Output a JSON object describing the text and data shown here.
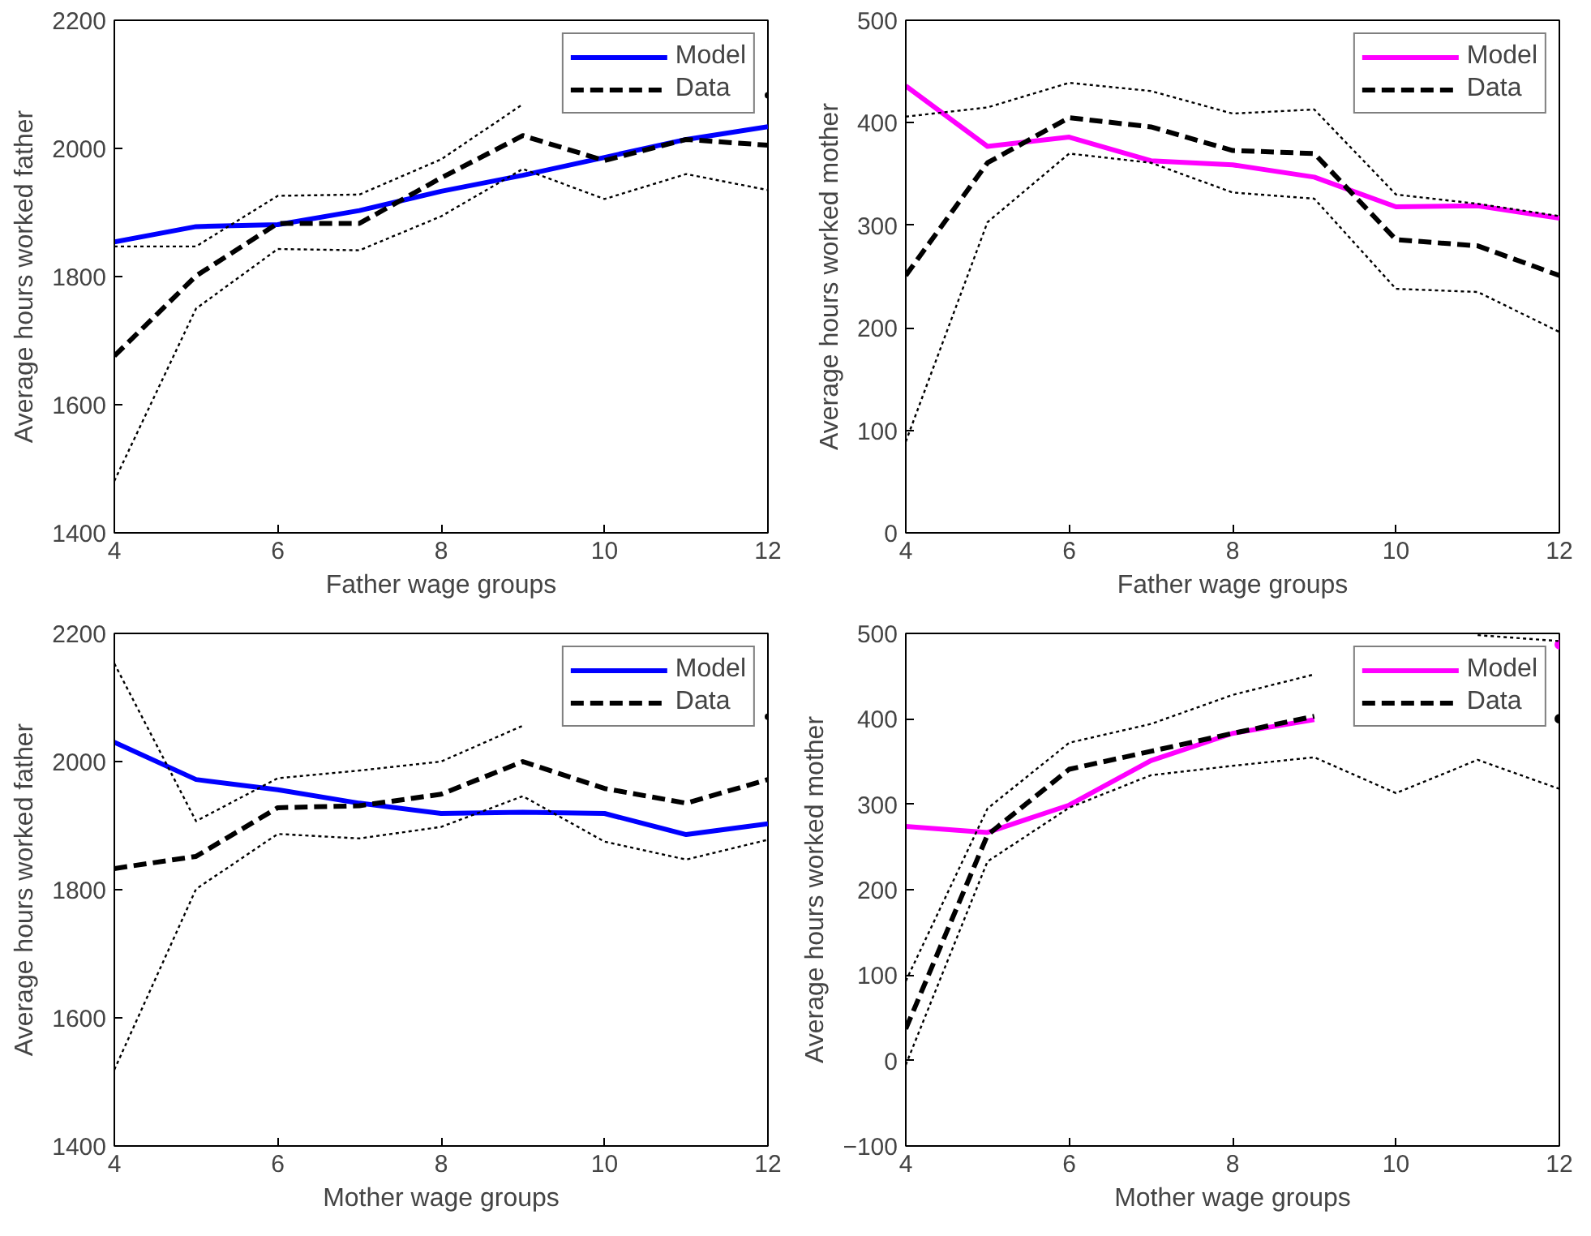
{
  "chart_data": [
    {
      "type": "line",
      "xlabel": "Father wage groups",
      "ylabel": "Average hours worked father",
      "x": [
        4,
        5,
        6,
        7,
        8,
        9,
        10,
        11,
        12
      ],
      "xlim": [
        4,
        12
      ],
      "xticks": [
        4,
        6,
        8,
        10,
        12
      ],
      "ylim": [
        1400,
        2200
      ],
      "yticks": [
        1400,
        1600,
        1800,
        2000,
        2200
      ],
      "grid": false,
      "legend": "top right",
      "series": [
        {
          "name": "Model",
          "color": "#0000ff",
          "line_style": "solid",
          "values": [
            1854,
            1878,
            1881,
            1903,
            1933,
            1958,
            1986,
            2014,
            2034
          ]
        },
        {
          "name": "Data",
          "color": "#000000",
          "line_style": "dashed",
          "values": [
            1676,
            1801,
            1883,
            1883,
            1954,
            2020,
            1981,
            2014,
            2005
          ]
        },
        {
          "color": "#000000",
          "line_style": "dotted",
          "values": [
            1481,
            1750,
            1843,
            1841,
            1894,
            1968,
            1921,
            1960,
            1935
          ]
        },
        {
          "color": "#000000",
          "line_style": "dotted",
          "values": [
            1847,
            1847,
            1926,
            1928,
            1983,
            2069,
            null,
            null,
            2083
          ]
        }
      ]
    },
    {
      "type": "line",
      "xlabel": "Father wage groups",
      "ylabel": "Average hours worked mother",
      "x": [
        4,
        5,
        6,
        7,
        8,
        9,
        10,
        11,
        12
      ],
      "xlim": [
        4,
        12
      ],
      "xticks": [
        4,
        6,
        8,
        10,
        12
      ],
      "ylim": [
        0,
        500
      ],
      "yticks": [
        0,
        100,
        200,
        300,
        400,
        500
      ],
      "grid": false,
      "legend": "top right",
      "series": [
        {
          "name": "Model",
          "color": "#ff00ff",
          "line_style": "solid",
          "values": [
            436,
            377,
            386,
            363,
            359,
            347,
            318,
            319,
            307
          ]
        },
        {
          "name": "Data",
          "color": "#000000",
          "line_style": "dashed",
          "values": [
            251,
            361,
            405,
            396,
            373,
            370,
            286,
            280,
            251
          ]
        },
        {
          "color": "#000000",
          "line_style": "dotted",
          "values": [
            89,
            303,
            370,
            361,
            332,
            326,
            238,
            235,
            196
          ]
        },
        {
          "color": "#000000",
          "line_style": "dotted",
          "values": [
            406,
            415,
            439,
            431,
            409,
            413,
            330,
            321,
            309
          ]
        }
      ]
    },
    {
      "type": "line",
      "xlabel": "Mother wage groups",
      "ylabel": "Average hours worked father",
      "x": [
        4,
        5,
        6,
        7,
        8,
        9,
        10,
        11,
        12
      ],
      "xlim": [
        4,
        12
      ],
      "xticks": [
        4,
        6,
        8,
        10,
        12
      ],
      "ylim": [
        1400,
        2200
      ],
      "yticks": [
        1400,
        1600,
        1800,
        2000,
        2200
      ],
      "grid": false,
      "legend": "top right",
      "series": [
        {
          "name": "Model",
          "color": "#0000ff",
          "line_style": "solid",
          "values": [
            2030,
            1972,
            1956,
            1935,
            1919,
            1921,
            1919,
            1886,
            1903
          ]
        },
        {
          "name": "Data",
          "color": "#000000",
          "line_style": "dashed",
          "values": [
            1833,
            1852,
            1928,
            1931,
            1949,
            2000,
            1958,
            1935,
            1972
          ]
        },
        {
          "color": "#000000",
          "line_style": "dotted",
          "values": [
            1519,
            1801,
            1887,
            1880,
            1898,
            1946,
            1875,
            1847,
            1878
          ]
        },
        {
          "color": "#000000",
          "line_style": "dotted",
          "values": [
            2153,
            1907,
            1974,
            1986,
            2000,
            2056,
            null,
            null,
            2070
          ]
        }
      ]
    },
    {
      "type": "line",
      "xlabel": "Mother wage groups",
      "ylabel": "Average hours worked mother",
      "x": [
        4,
        5,
        6,
        7,
        8,
        9,
        10,
        11,
        12
      ],
      "xlim": [
        4,
        12
      ],
      "xticks": [
        4,
        6,
        8,
        10,
        12
      ],
      "ylim": [
        -100,
        500
      ],
      "yticks": [
        -100,
        0,
        100,
        200,
        300,
        400,
        500
      ],
      "grid": false,
      "legend": "top right",
      "series": [
        {
          "name": "Model",
          "color": "#ff00ff",
          "line_style": "solid",
          "values": [
            274,
            267,
            299,
            351,
            383,
            399,
            null,
            null,
            487
          ]
        },
        {
          "name": "Data",
          "color": "#000000",
          "line_style": "dashed",
          "values": [
            37,
            264,
            341,
            362,
            383,
            403,
            null,
            null,
            400
          ]
        },
        {
          "color": "#000000",
          "line_style": "dotted",
          "values": [
            -5,
            233,
            296,
            334,
            345,
            355,
            313,
            352,
            318
          ]
        },
        {
          "color": "#000000",
          "line_style": "dotted",
          "values": [
            93,
            295,
            372,
            394,
            428,
            452,
            null,
            498,
            491
          ]
        }
      ]
    }
  ]
}
